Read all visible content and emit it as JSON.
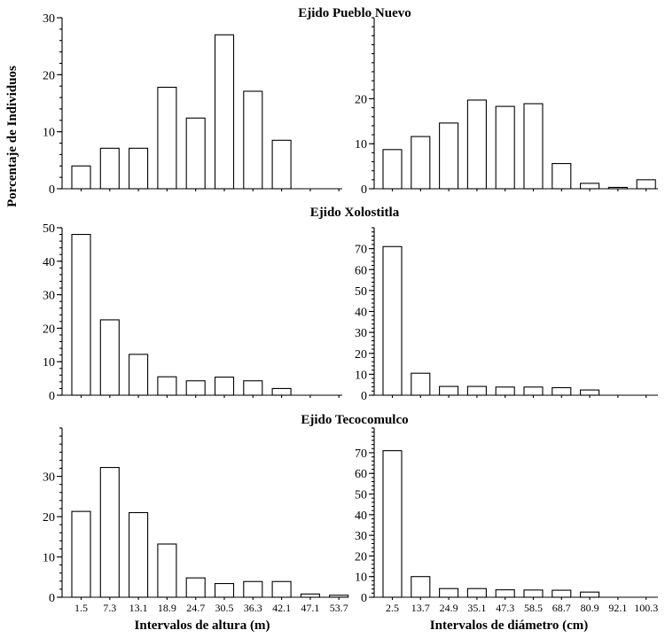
{
  "figure": {
    "ylabel": "Porcentaje de Individuos",
    "xlabel_left": "Intervalos de altura (m)",
    "xlabel_right": "Intervalos de diámetro (cm)",
    "xticks_left": [
      "1.5",
      "7.3",
      "13.1",
      "18.9",
      "24.7",
      "30.5",
      "36.3",
      "42.1",
      "47.1",
      "53.7"
    ],
    "xticks_right": [
      "2.5",
      "13.7",
      "24.9",
      "35.1",
      "47.3",
      "58.5",
      "68.7",
      "80.9",
      "92.1",
      "100.3"
    ]
  },
  "chart_data": [
    {
      "type": "bar",
      "title": "Ejido Pueblo Nuevo",
      "variable": "altura",
      "categories": [
        "1.5",
        "7.3",
        "13.1",
        "18.9",
        "24.7",
        "30.5",
        "36.3",
        "42.1",
        "47.1",
        "53.7"
      ],
      "values": [
        4.0,
        7.1,
        7.1,
        17.8,
        12.4,
        27.0,
        17.1,
        8.5,
        0,
        0
      ],
      "ylim": [
        0,
        30
      ],
      "yticks": [
        0,
        10,
        20,
        30
      ]
    },
    {
      "type": "bar",
      "title": "",
      "variable": "diámetro",
      "categories": [
        "2.5",
        "13.7",
        "24.9",
        "35.1",
        "47.3",
        "58.5",
        "68.7",
        "80.9",
        "92.1",
        "100.3"
      ],
      "values": [
        8.7,
        11.6,
        14.6,
        19.7,
        18.3,
        18.9,
        5.6,
        1.2,
        0.3,
        2.0
      ],
      "ylim": [
        0,
        38
      ],
      "yticks": [
        0,
        10,
        20
      ]
    },
    {
      "type": "bar",
      "title": "Ejido Xolostitla",
      "variable": "altura",
      "categories": [
        "1.5",
        "7.3",
        "13.1",
        "18.9",
        "24.7",
        "30.5",
        "36.3",
        "42.1",
        "47.1",
        "53.7"
      ],
      "values": [
        48.0,
        22.5,
        12.2,
        5.5,
        4.3,
        5.4,
        4.3,
        2.0,
        0,
        0
      ],
      "ylim": [
        0,
        50
      ],
      "yticks": [
        0,
        10,
        20,
        30,
        40,
        50
      ]
    },
    {
      "type": "bar",
      "title": "",
      "variable": "diámetro",
      "categories": [
        "2.5",
        "13.7",
        "24.9",
        "35.1",
        "47.3",
        "58.5",
        "68.7",
        "80.9",
        "92.1",
        "100.3"
      ],
      "values": [
        71.0,
        10.5,
        4.2,
        4.2,
        3.9,
        3.9,
        3.6,
        2.5,
        0,
        0
      ],
      "ylim": [
        0,
        80
      ],
      "yticks": [
        0,
        10,
        20,
        30,
        40,
        50,
        60,
        70
      ]
    },
    {
      "type": "bar",
      "title": "Ejido Tecocomulco",
      "variable": "altura",
      "categories": [
        "1.5",
        "7.3",
        "13.1",
        "18.9",
        "24.7",
        "30.5",
        "36.3",
        "42.1",
        "47.1",
        "53.7"
      ],
      "values": [
        21.3,
        32.2,
        21.0,
        13.2,
        4.8,
        3.4,
        3.9,
        3.9,
        0.8,
        0.5
      ],
      "ylim": [
        0,
        42
      ],
      "yticks": [
        0,
        10,
        20,
        30
      ]
    },
    {
      "type": "bar",
      "title": "",
      "variable": "diámetro",
      "categories": [
        "2.5",
        "13.7",
        "24.9",
        "35.1",
        "47.3",
        "58.5",
        "68.7",
        "80.9",
        "92.1",
        "100.3"
      ],
      "values": [
        71.0,
        10.0,
        4.2,
        4.2,
        3.6,
        3.5,
        3.4,
        2.5,
        0,
        0
      ],
      "ylim": [
        0,
        82
      ],
      "yticks": [
        0,
        10,
        20,
        30,
        40,
        50,
        60,
        70
      ]
    }
  ]
}
